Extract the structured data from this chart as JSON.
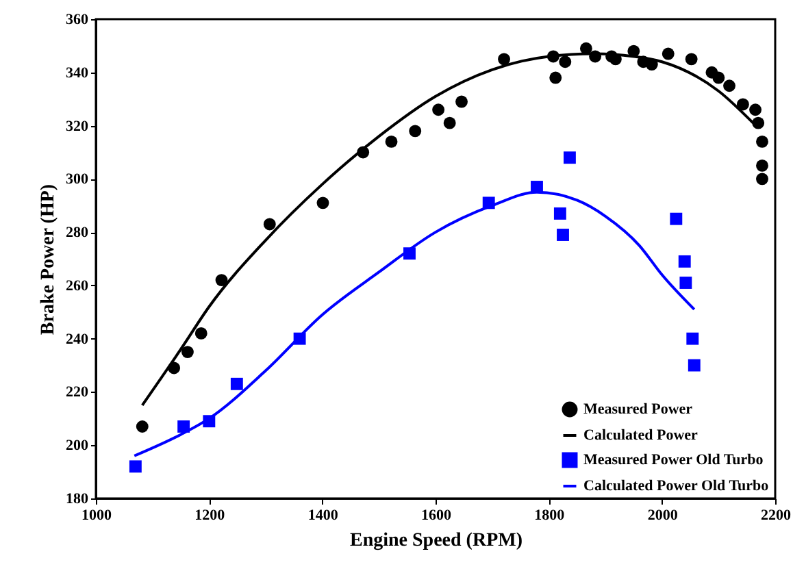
{
  "chart_data": {
    "type": "scatter",
    "xlabel": "Engine Speed (RPM)",
    "ylabel": "Brake Power (HP)",
    "xlim": [
      1000,
      2200
    ],
    "ylim": [
      180,
      360
    ],
    "xticks": [
      1000,
      1200,
      1400,
      1600,
      1800,
      2000,
      2200
    ],
    "yticks": [
      180,
      200,
      220,
      240,
      260,
      280,
      300,
      320,
      340,
      360
    ],
    "grid": false,
    "legend": "bottom right",
    "series": [
      {
        "name": "Measured Power",
        "type": "scatter",
        "marker": "circle",
        "color": "#000000",
        "x": [
          1082,
          1138,
          1162,
          1186,
          1222,
          1307,
          1401,
          1472,
          1522,
          1564,
          1605,
          1625,
          1646,
          1721,
          1808,
          1812,
          1829,
          1866,
          1882,
          1911,
          1918,
          1950,
          1967,
          1982,
          2011,
          2052,
          2088,
          2100,
          2119,
          2143,
          2165,
          2170,
          2177,
          2177,
          2177
        ],
        "values": [
          207,
          229,
          235,
          242,
          262,
          283,
          291,
          310,
          314,
          318,
          326,
          321,
          329,
          345,
          346,
          338,
          344,
          349,
          346,
          346,
          345,
          348,
          344,
          343,
          347,
          345,
          340,
          338,
          335,
          328,
          326,
          321,
          314,
          305,
          300
        ]
      },
      {
        "name": "Calculated Power",
        "type": "line",
        "color": "#000000",
        "x": [
          1082,
          1150,
          1200,
          1300,
          1400,
          1500,
          1600,
          1700,
          1800,
          1880,
          1950,
          2000,
          2100,
          2161
        ],
        "values": [
          215,
          236,
          252,
          277,
          298,
          316,
          331,
          341,
          346,
          347,
          346,
          344,
          333,
          321
        ]
      },
      {
        "name": "Measured Power Old Turbo",
        "type": "scatter",
        "marker": "square",
        "color": "#0000ff",
        "x": [
          1070,
          1155,
          1200,
          1249,
          1360,
          1554,
          1694,
          1779,
          1820,
          1825,
          1837,
          2025,
          2040,
          2042,
          2054,
          2057
        ],
        "values": [
          192,
          207,
          209,
          223,
          240,
          272,
          291,
          297,
          287,
          279,
          308,
          285,
          269,
          261,
          240,
          230
        ]
      },
      {
        "name": "Calculated Power Old Turbo",
        "type": "line",
        "color": "#0000ff",
        "x": [
          1068,
          1150,
          1200,
          1300,
          1400,
          1500,
          1600,
          1700,
          1779,
          1850,
          1900,
          1960,
          2000,
          2057
        ],
        "values": [
          196,
          204,
          210,
          228,
          249,
          265,
          280,
          290,
          295,
          292,
          286,
          275,
          264,
          251
        ]
      }
    ]
  }
}
